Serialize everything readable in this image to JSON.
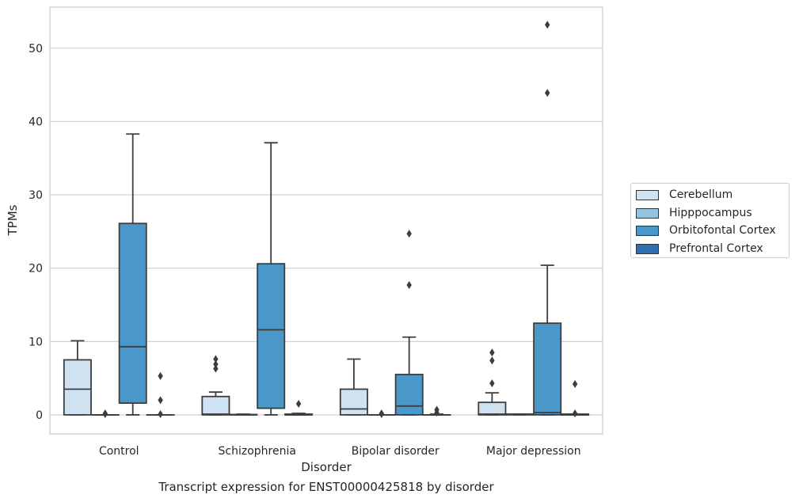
{
  "caption": "Transcript expression for ENST00000425818 by disorder",
  "chart_data": {
    "type": "box",
    "xlabel": "Disorder",
    "ylabel": "TPMs",
    "ylim": [
      -2.6,
      55.6
    ],
    "yticks": [
      0,
      10,
      20,
      30,
      40,
      50
    ],
    "grid": "horizontal",
    "legend_position": "right",
    "categories": [
      "Control",
      "Schizophrenia",
      "Bipolar disorder",
      "Major depression"
    ],
    "series": [
      {
        "name": "Cerebellum",
        "color": "#d0e1f2",
        "boxes": [
          {
            "whislo": 0,
            "q1": 0,
            "med": 3.5,
            "q3": 7.5,
            "whishi": 10.1,
            "fliers": []
          },
          {
            "whislo": 0,
            "q1": 0,
            "med": 0.1,
            "q3": 2.5,
            "whishi": 3.1,
            "fliers": [
              6.3,
              6.9,
              7.6
            ]
          },
          {
            "whislo": 0,
            "q1": 0,
            "med": 0.8,
            "q3": 3.5,
            "whishi": 7.6,
            "fliers": []
          },
          {
            "whislo": 0,
            "q1": 0,
            "med": 0.1,
            "q3": 1.7,
            "whishi": 3.0,
            "fliers": [
              4.3,
              7.4,
              8.5
            ]
          }
        ]
      },
      {
        "name": "Hipppocampus",
        "color": "#94c4df",
        "boxes": [
          {
            "whislo": 0,
            "q1": 0,
            "med": 0,
            "q3": 0,
            "whishi": 0,
            "fliers": [
              0.1,
              0.2
            ]
          },
          {
            "whislo": 0,
            "q1": 0,
            "med": 0,
            "q3": 0.05,
            "whishi": 0.1,
            "fliers": []
          },
          {
            "whislo": 0,
            "q1": 0,
            "med": 0,
            "q3": 0,
            "whishi": 0,
            "fliers": [
              0.1,
              0.2
            ]
          },
          {
            "whislo": 0,
            "q1": 0,
            "med": 0.05,
            "q3": 0.1,
            "whishi": 0.1,
            "fliers": []
          }
        ]
      },
      {
        "name": "Orbitofontal Cortex",
        "color": "#4a98c9",
        "boxes": [
          {
            "whislo": 0,
            "q1": 1.6,
            "med": 9.3,
            "q3": 26.1,
            "whishi": 38.3,
            "fliers": []
          },
          {
            "whislo": 0,
            "q1": 0.9,
            "med": 11.6,
            "q3": 20.6,
            "whishi": 37.1,
            "fliers": []
          },
          {
            "whislo": 0,
            "q1": 0,
            "med": 1.2,
            "q3": 5.5,
            "whishi": 10.6,
            "fliers": [
              17.7,
              24.7
            ]
          },
          {
            "whislo": 0,
            "q1": 0,
            "med": 0.3,
            "q3": 12.5,
            "whishi": 20.4,
            "fliers": [
              43.9,
              53.2
            ]
          }
        ]
      },
      {
        "name": "Prefrontal Cortex",
        "color": "#2f6eb0",
        "boxes": [
          {
            "whislo": 0,
            "q1": 0,
            "med": 0,
            "q3": 0,
            "whishi": 0,
            "fliers": [
              5.3,
              2.0,
              0.1
            ]
          },
          {
            "whislo": 0,
            "q1": 0,
            "med": 0,
            "q3": 0.1,
            "whishi": 0.2,
            "fliers": [
              1.5
            ]
          },
          {
            "whislo": 0,
            "q1": 0,
            "med": 0,
            "q3": 0,
            "whishi": 0.1,
            "fliers": [
              0.7,
              0.3
            ]
          },
          {
            "whislo": 0,
            "q1": 0,
            "med": 0,
            "q3": 0.1,
            "whishi": 0.1,
            "fliers": [
              4.2,
              0.2
            ]
          }
        ]
      }
    ]
  }
}
